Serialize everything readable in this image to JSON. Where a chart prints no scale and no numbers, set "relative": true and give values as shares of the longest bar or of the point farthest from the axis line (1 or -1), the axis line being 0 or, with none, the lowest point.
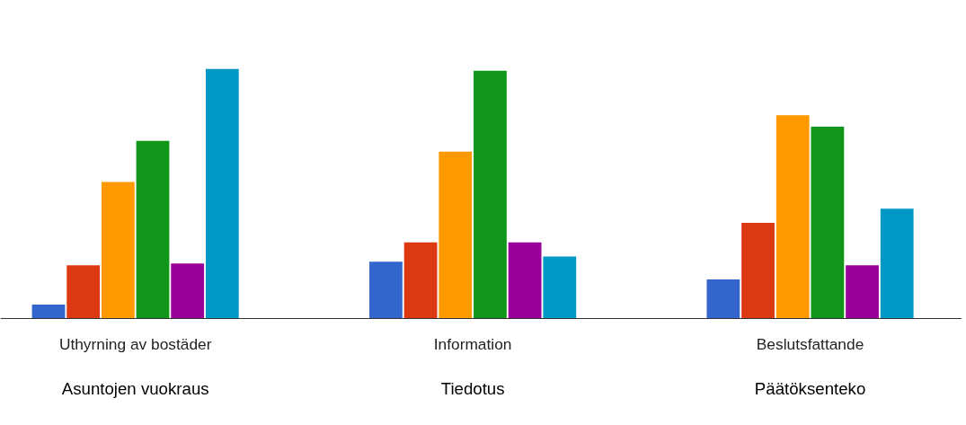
{
  "chart_data": {
    "type": "bar",
    "relative": true,
    "categories": [
      "Uthyrning av bostäder",
      "Information",
      "Beslutsfattande"
    ],
    "series": [
      {
        "color": "#3366cc",
        "values": [
          0.057,
          0.228,
          0.157
        ]
      },
      {
        "color": "#dc3912",
        "values": [
          0.214,
          0.306,
          0.384
        ]
      },
      {
        "color": "#ff9900",
        "values": [
          0.548,
          0.669,
          0.815
        ]
      },
      {
        "color": "#109618",
        "values": [
          0.712,
          0.993,
          0.769
        ]
      },
      {
        "color": "#990099",
        "values": [
          0.221,
          0.306,
          0.214
        ]
      },
      {
        "color": "#0099c6",
        "values": [
          1,
          0.249,
          0.441
        ]
      }
    ],
    "annotations": [
      "Asuntojen vuokraus",
      "Tiedotus",
      "Päätöksenteko"
    ]
  }
}
